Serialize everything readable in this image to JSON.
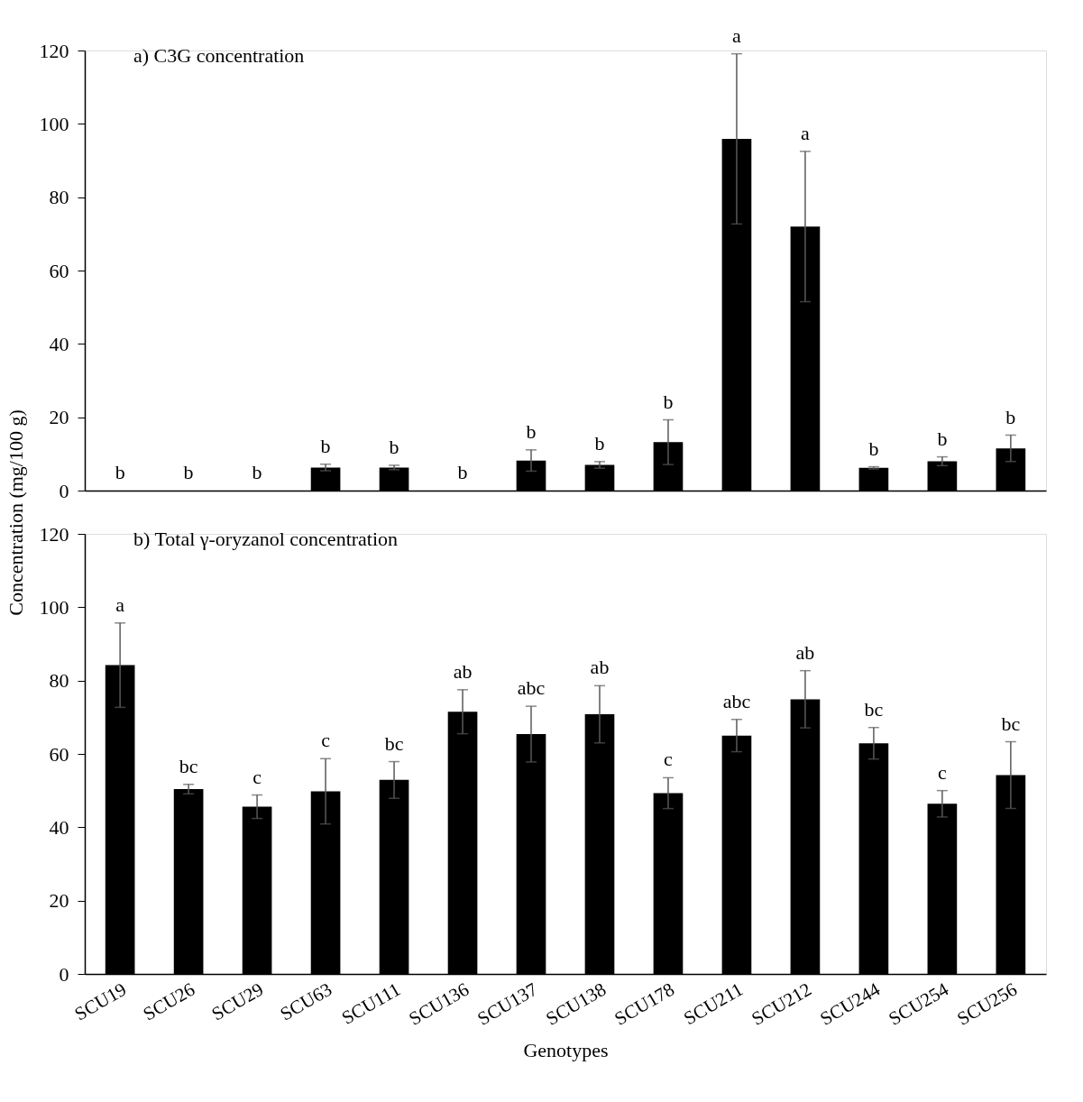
{
  "chart_data": [
    {
      "type": "bar",
      "title": "a) C3G concentration",
      "ylabel": "Concentration (mg/100 g)",
      "categories": [
        "SCU19",
        "SCU26",
        "SCU29",
        "SCU63",
        "SCU111",
        "SCU136",
        "SCU137",
        "SCU138",
        "SCU178",
        "SCU211",
        "SCU212",
        "SCU244",
        "SCU254",
        "SCU256"
      ],
      "series": [
        {
          "color": "#000000",
          "values": [
            0,
            0,
            0,
            6.3,
            6.3,
            0,
            8.2,
            7,
            13.2,
            95.9,
            72,
            6.2,
            8,
            11.5
          ],
          "errors": [
            null,
            null,
            null,
            0.9,
            0.6,
            null,
            2.9,
            0.9,
            6.1,
            23.2,
            20.5,
            0.3,
            1.2,
            3.6
          ]
        }
      ],
      "ylim": [
        0,
        120
      ],
      "yticks": [
        0,
        20,
        40,
        60,
        80,
        100,
        120
      ],
      "tick_labels": "y",
      "annotations": [
        {
          "text": "b",
          "x": "SCU19",
          "y": 0
        },
        {
          "text": "b",
          "x": "SCU26",
          "y": 0
        },
        {
          "text": "b",
          "x": "SCU29",
          "y": 0
        },
        {
          "text": "b",
          "x": "SCU63",
          "y": 7.2
        },
        {
          "text": "b",
          "x": "SCU111",
          "y": 6.9
        },
        {
          "text": "b",
          "x": "SCU136",
          "y": 0
        },
        {
          "text": "b",
          "x": "SCU137",
          "y": 11.1
        },
        {
          "text": "b",
          "x": "SCU138",
          "y": 7.9
        },
        {
          "text": "b",
          "x": "SCU178",
          "y": 19.3
        },
        {
          "text": "a",
          "x": "SCU211",
          "y": 119.1
        },
        {
          "text": "a",
          "x": "SCU212",
          "y": 92.5
        },
        {
          "text": "b",
          "x": "SCU244",
          "y": 6.5
        },
        {
          "text": "b",
          "x": "SCU254",
          "y": 9.2
        },
        {
          "text": "b",
          "x": "SCU256",
          "y": 15.1
        }
      ]
    },
    {
      "type": "bar",
      "title": "b) Total γ-oryzanol concentration",
      "xlabel": "Genotypes",
      "categories": [
        "SCU19",
        "SCU26",
        "SCU29",
        "SCU63",
        "SCU111",
        "SCU136",
        "SCU137",
        "SCU138",
        "SCU178",
        "SCU211",
        "SCU212",
        "SCU244",
        "SCU254",
        "SCU256"
      ],
      "series": [
        {
          "color": "#000000",
          "values": [
            84.2,
            50.4,
            45.6,
            49.8,
            52.9,
            71.5,
            65.4,
            70.8,
            49.3,
            65,
            74.9,
            62.9,
            46.4,
            54.2
          ],
          "errors": [
            11.5,
            1.3,
            3.2,
            8.9,
            5,
            6,
            7.6,
            7.8,
            4.2,
            4.4,
            7.8,
            4.3,
            3.6,
            9.1
          ]
        }
      ],
      "ylim": [
        0,
        120
      ],
      "yticks": [
        0,
        20,
        40,
        60,
        80,
        100,
        120
      ],
      "annotations": [
        {
          "text": "a",
          "x": "SCU19",
          "y": 95.7
        },
        {
          "text": "bc",
          "x": "SCU26",
          "y": 51.7
        },
        {
          "text": "c",
          "x": "SCU29",
          "y": 48.8
        },
        {
          "text": "c",
          "x": "SCU63",
          "y": 58.7
        },
        {
          "text": "bc",
          "x": "SCU111",
          "y": 57.9
        },
        {
          "text": "ab",
          "x": "SCU136",
          "y": 77.5
        },
        {
          "text": "abc",
          "x": "SCU137",
          "y": 73
        },
        {
          "text": "ab",
          "x": "SCU138",
          "y": 78.6
        },
        {
          "text": "c",
          "x": "SCU178",
          "y": 53.5
        },
        {
          "text": "abc",
          "x": "SCU211",
          "y": 69.4
        },
        {
          "text": "ab",
          "x": "SCU212",
          "y": 82.7
        },
        {
          "text": "bc",
          "x": "SCU244",
          "y": 67.2
        },
        {
          "text": "c",
          "x": "SCU254",
          "y": 50
        },
        {
          "text": "bc",
          "x": "SCU256",
          "y": 63.3
        }
      ]
    }
  ]
}
